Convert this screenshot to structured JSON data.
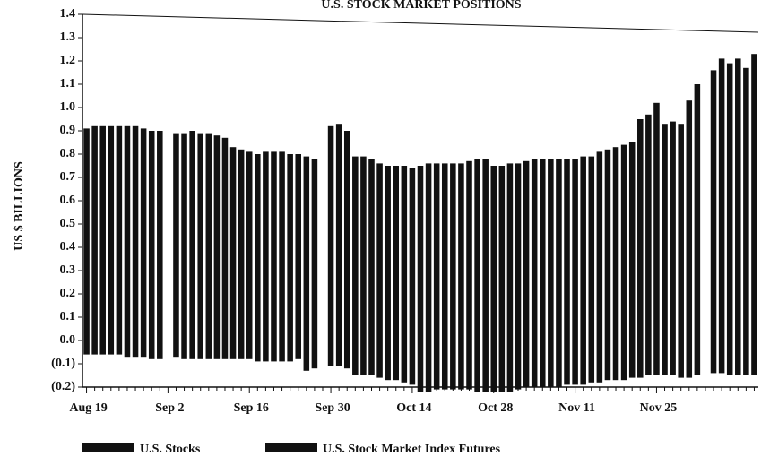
{
  "chart_data": {
    "type": "bar",
    "stacked": true,
    "title": "U.S. STOCK MARKET POSITIONS",
    "y_label": "US $ BILLIONS",
    "categories": [
      "Aug 19",
      null,
      null,
      null,
      null,
      null,
      null,
      null,
      null,
      null,
      "Sep 2",
      null,
      null,
      null,
      null,
      null,
      null,
      null,
      null,
      null,
      "Sep 16",
      null,
      null,
      null,
      null,
      null,
      null,
      null,
      null,
      null,
      "Sep 30",
      null,
      null,
      null,
      null,
      null,
      null,
      null,
      null,
      null,
      "Oct 14",
      null,
      null,
      null,
      null,
      null,
      null,
      null,
      null,
      null,
      "Oct 28",
      null,
      null,
      null,
      null,
      null,
      null,
      null,
      null,
      null,
      "Nov 11",
      null,
      null,
      null,
      null,
      null,
      null,
      null,
      null,
      null,
      "Nov 25",
      null,
      null,
      null,
      null,
      null,
      null,
      null,
      null,
      null,
      null,
      null,
      null
    ],
    "series": [
      {
        "name": "U.S. Stocks",
        "color": "#111111",
        "values": [
          0.91,
          0.92,
          0.92,
          0.92,
          0.92,
          0.92,
          0.92,
          0.91,
          0.9,
          0.9,
          null,
          0.89,
          0.89,
          0.9,
          0.89,
          0.89,
          0.88,
          0.87,
          0.83,
          0.82,
          0.81,
          0.8,
          0.81,
          0.81,
          0.81,
          0.8,
          0.8,
          0.79,
          0.78,
          null,
          0.92,
          0.93,
          0.9,
          0.79,
          0.79,
          0.78,
          0.76,
          0.75,
          0.75,
          0.75,
          0.74,
          0.75,
          0.76,
          0.76,
          0.76,
          0.76,
          0.76,
          0.77,
          0.78,
          0.78,
          0.75,
          0.75,
          0.76,
          0.76,
          0.77,
          0.78,
          0.78,
          0.78,
          0.78,
          0.78,
          0.78,
          0.79,
          0.79,
          0.81,
          0.82,
          0.83,
          0.84,
          0.85,
          0.95,
          0.97,
          1.02,
          0.93,
          0.94,
          0.93,
          1.03,
          1.1,
          null,
          1.16,
          1.21,
          1.19,
          1.21,
          1.17,
          1.23
        ]
      },
      {
        "name": "U.S. Stock Market Index Futures",
        "color": "#111111",
        "values": [
          -0.06,
          -0.06,
          -0.06,
          -0.06,
          -0.06,
          -0.07,
          -0.07,
          -0.07,
          -0.08,
          -0.08,
          null,
          -0.07,
          -0.08,
          -0.08,
          -0.08,
          -0.08,
          -0.08,
          -0.08,
          -0.08,
          -0.08,
          -0.08,
          -0.09,
          -0.09,
          -0.09,
          -0.09,
          -0.09,
          -0.08,
          -0.13,
          -0.12,
          null,
          -0.11,
          -0.11,
          -0.12,
          -0.15,
          -0.15,
          -0.15,
          -0.16,
          -0.17,
          -0.17,
          -0.18,
          -0.19,
          -0.22,
          -0.22,
          -0.21,
          -0.21,
          -0.21,
          -0.21,
          -0.21,
          -0.22,
          -0.22,
          -0.22,
          -0.22,
          -0.22,
          -0.21,
          -0.2,
          -0.2,
          -0.2,
          -0.2,
          -0.2,
          -0.19,
          -0.19,
          -0.19,
          -0.18,
          -0.18,
          -0.17,
          -0.17,
          -0.17,
          -0.16,
          -0.16,
          -0.15,
          -0.15,
          -0.15,
          -0.15,
          -0.16,
          -0.16,
          -0.15,
          null,
          -0.14,
          -0.14,
          -0.15,
          -0.15,
          -0.15,
          -0.15
        ]
      }
    ],
    "ylim": [
      -0.2,
      1.4
    ],
    "yticks": [
      {
        "value": -0.2,
        "label": "(0.2)"
      },
      {
        "value": -0.1,
        "label": "(0.1)"
      },
      {
        "value": 0,
        "label": "0.0"
      },
      0.1,
      0.2,
      0.3,
      0.4,
      0.5,
      0.6,
      0.7,
      0.8,
      0.9,
      {
        "value": 1,
        "label": "1.0"
      },
      1.1,
      1.2,
      1.3,
      1.4
    ],
    "grid": false
  }
}
